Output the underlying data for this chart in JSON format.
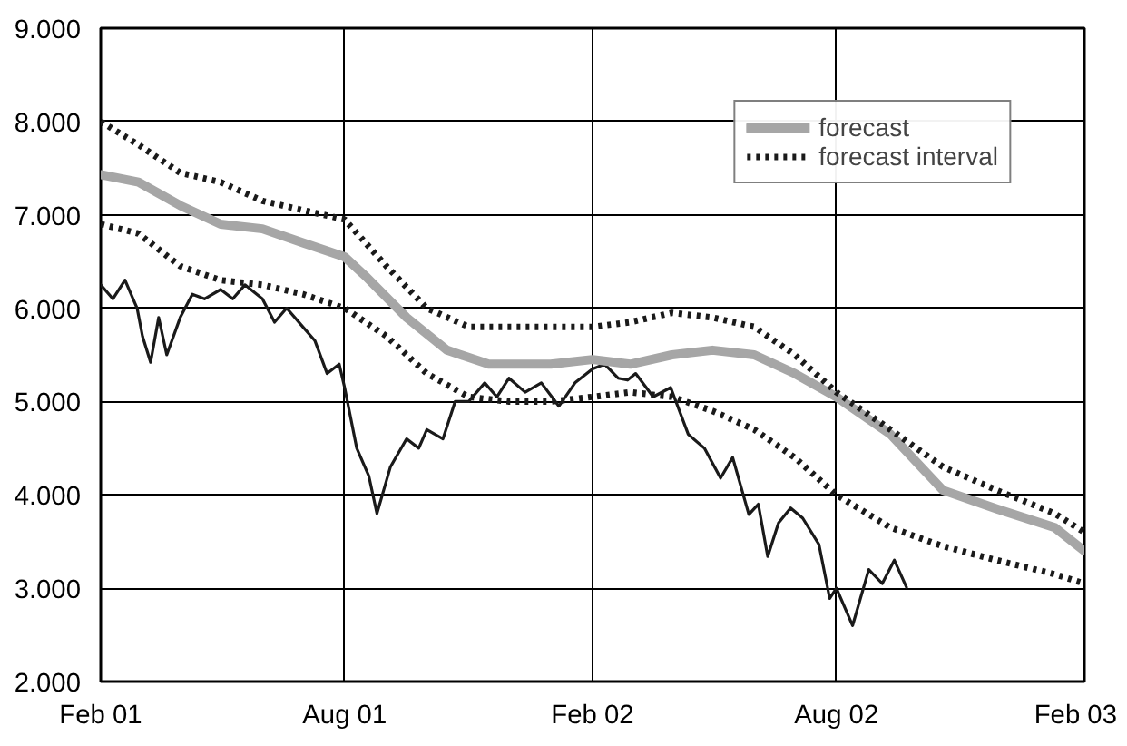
{
  "chart_data": {
    "type": "line",
    "xlim": [
      "2001-02-01",
      "2003-02-01"
    ],
    "ylim": [
      2000,
      9000
    ],
    "xticks": [
      {
        "value": "2001-02-01",
        "label": "Feb 01"
      },
      {
        "value": "2001-08-01",
        "label": "Aug 01"
      },
      {
        "value": "2002-02-01",
        "label": "Feb 02"
      },
      {
        "value": "2002-08-01",
        "label": "Aug 02"
      },
      {
        "value": "2003-02-01",
        "label": "Feb 03"
      }
    ],
    "yticks": [
      {
        "value": 2000,
        "label": "2.000"
      },
      {
        "value": 3000,
        "label": "3.000"
      },
      {
        "value": 4000,
        "label": "4.000"
      },
      {
        "value": 5000,
        "label": "5.000"
      },
      {
        "value": 6000,
        "label": "6.000"
      },
      {
        "value": 7000,
        "label": "7.000"
      },
      {
        "value": 8000,
        "label": "8.000"
      },
      {
        "value": 9000,
        "label": "9.000"
      }
    ],
    "grid": true,
    "legend": "top right",
    "marker": "none",
    "series": [
      {
        "color": "#1a1a1a",
        "line_style": "solid",
        "x": [
          "2001-02-01",
          "2001-02-10",
          "2001-02-19",
          "2001-02-28",
          "2001-03-04",
          "2001-03-10",
          "2001-03-16",
          "2001-03-22",
          "2001-04-01",
          "2001-04-10",
          "2001-04-19",
          "2001-05-01",
          "2001-05-10",
          "2001-05-19",
          "2001-06-01",
          "2001-06-10",
          "2001-06-19",
          "2001-07-01",
          "2001-07-10",
          "2001-07-19",
          "2001-07-28",
          "2001-08-01",
          "2001-08-10",
          "2001-08-19",
          "2001-08-25",
          "2001-09-04",
          "2001-09-16",
          "2001-09-25",
          "2001-10-01",
          "2001-10-13",
          "2001-10-22",
          "2001-11-01",
          "2001-11-13",
          "2001-11-22",
          "2001-12-01",
          "2001-12-13",
          "2001-12-25",
          "2002-01-07",
          "2002-01-19",
          "2002-02-01",
          "2002-02-10",
          "2002-02-20",
          "2002-02-27",
          "2002-03-05",
          "2002-03-18",
          "2002-03-31",
          "2002-04-13",
          "2002-04-25",
          "2002-05-07",
          "2002-05-16",
          "2002-05-28",
          "2002-06-04",
          "2002-06-11",
          "2002-06-19",
          "2002-06-28",
          "2002-07-07",
          "2002-07-19",
          "2002-07-27",
          "2002-08-01",
          "2002-08-13",
          "2002-08-25",
          "2002-09-04",
          "2002-09-13",
          "2002-09-22"
        ],
        "values": [
          6250,
          6100,
          6300,
          6000,
          5700,
          5420,
          5900,
          5500,
          5900,
          6150,
          6100,
          6200,
          6100,
          6250,
          6100,
          5850,
          6000,
          5800,
          5650,
          5300,
          5400,
          5150,
          4500,
          4200,
          3800,
          4300,
          4600,
          4500,
          4700,
          4600,
          5000,
          5000,
          5200,
          5050,
          5250,
          5100,
          5200,
          4950,
          5200,
          5350,
          5400,
          5250,
          5230,
          5300,
          5050,
          5150,
          4650,
          4500,
          4180,
          4400,
          3790,
          3900,
          3340,
          3700,
          3860,
          3750,
          3470,
          2890,
          3000,
          2600,
          3200,
          3050,
          3300,
          3010
        ]
      },
      {
        "name": "forecast",
        "color": "#a6a6a6",
        "line_style": "solid",
        "x": [
          "2001-02-01",
          "2001-03-01",
          "2001-04-01",
          "2001-05-01",
          "2001-06-01",
          "2001-07-01",
          "2001-08-01",
          "2001-08-16",
          "2001-09-16",
          "2001-10-16",
          "2001-11-16",
          "2002-01-01",
          "2002-02-01",
          "2002-03-01",
          "2002-04-01",
          "2002-05-01",
          "2002-06-01",
          "2002-07-01",
          "2002-08-01",
          "2002-09-10",
          "2002-10-19",
          "2002-11-28",
          "2003-01-10",
          "2003-02-01"
        ],
        "values": [
          7430,
          7350,
          7100,
          6900,
          6850,
          6700,
          6550,
          6350,
          5900,
          5550,
          5400,
          5400,
          5450,
          5400,
          5500,
          5550,
          5500,
          5300,
          5050,
          4650,
          4050,
          3850,
          3650,
          3400
        ]
      },
      {
        "name": "forecast interval",
        "color": "#1a1a1a",
        "line_style": "dotted",
        "x": [
          "2001-02-01",
          "2001-03-01",
          "2001-04-01",
          "2001-05-01",
          "2001-06-01",
          "2001-07-01",
          "2001-08-01",
          "2001-09-01",
          "2001-10-01",
          "2001-11-01",
          "2001-12-01",
          "2002-01-01",
          "2002-02-01",
          "2002-03-01",
          "2002-04-01",
          "2002-05-01",
          "2002-06-01",
          "2002-07-01",
          "2002-08-01",
          "2002-09-10",
          "2002-10-19",
          "2002-11-28",
          "2003-01-10",
          "2003-02-01"
        ],
        "values": [
          8000,
          7750,
          7450,
          7350,
          7150,
          7050,
          6950,
          6450,
          6000,
          5800,
          5800,
          5800,
          5800,
          5850,
          5950,
          5900,
          5800,
          5500,
          5100,
          4700,
          4300,
          4050,
          3800,
          3600
        ]
      },
      {
        "color": "#1a1a1a",
        "line_style": "dotted",
        "x": [
          "2001-02-01",
          "2001-03-01",
          "2001-04-01",
          "2001-05-01",
          "2001-06-01",
          "2001-07-01",
          "2001-08-01",
          "2001-09-01",
          "2001-10-01",
          "2001-11-01",
          "2001-12-01",
          "2002-01-01",
          "2002-02-01",
          "2002-03-01",
          "2002-04-01",
          "2002-05-01",
          "2002-06-01",
          "2002-07-01",
          "2002-08-01",
          "2002-09-10",
          "2002-10-19",
          "2002-11-28",
          "2003-01-10",
          "2003-02-01"
        ],
        "values": [
          6900,
          6800,
          6450,
          6300,
          6250,
          6150,
          6000,
          5700,
          5300,
          5050,
          5000,
          5000,
          5050,
          5100,
          5050,
          4900,
          4700,
          4400,
          4000,
          3650,
          3450,
          3300,
          3150,
          3050
        ]
      }
    ]
  }
}
